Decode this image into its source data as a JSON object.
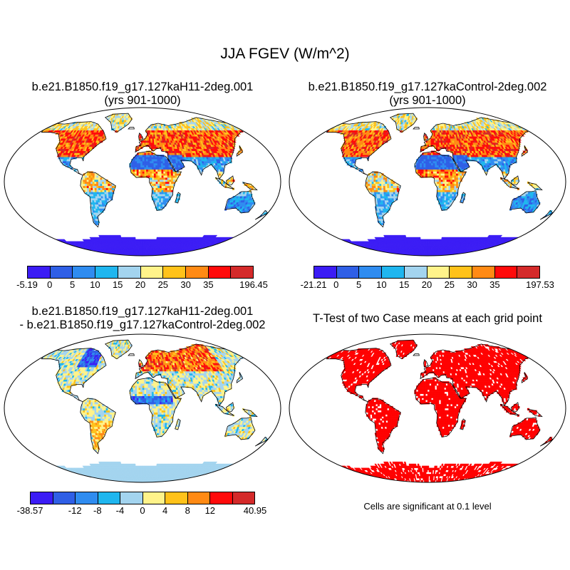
{
  "figure": {
    "title": "JJA FGEV (W/m^2)"
  },
  "panels": [
    {
      "id": "case",
      "title_line1": "b.e21.B1850.f19_g17.127kaH11-2deg.001",
      "title_line2": "(yrs 901-1000)",
      "colorbar_labels": [
        "-5.19",
        "0",
        "5",
        "10",
        "15",
        "20",
        "25",
        "30",
        "35",
        "196.45"
      ]
    },
    {
      "id": "control",
      "title_line1": "b.e21.B1850.f19_g17.127kaControl-2deg.002",
      "title_line2": "(yrs 901-1000)",
      "colorbar_labels": [
        "-21.21",
        "0",
        "5",
        "10",
        "15",
        "20",
        "25",
        "30",
        "35",
        "197.53"
      ]
    },
    {
      "id": "difference",
      "title_line1": "b.e21.B1850.f19_g17.127kaH11-2deg.001",
      "title_line2": "- b.e21.B1850.f19_g17.127kaControl-2deg.002",
      "colorbar_labels": [
        "-38.57",
        "-12",
        "-8",
        "-4",
        "0",
        "4",
        "8",
        "12",
        "40.95"
      ]
    },
    {
      "id": "ttest",
      "title_line1": "T-Test of two Case means at each grid point",
      "note": "Cells are significant at 0.1 level"
    }
  ],
  "colors": {
    "mean_palette": [
      "#3b1cf5",
      "#2f5fe6",
      "#2f8cf0",
      "#1fb6ef",
      "#a3d4ef",
      "#fff38a",
      "#ffc21a",
      "#ff8a14",
      "#ff0a0a",
      "#d42a2a"
    ],
    "diff_palette": [
      "#3b1cf5",
      "#2f5fe6",
      "#2f8cf0",
      "#1fb6ef",
      "#a3d4ef",
      "#fff38a",
      "#ffc21a",
      "#ff8a14",
      "#ff0a0a",
      "#d42a2a"
    ],
    "significance": "#ff0000",
    "antarctica_mean": "#3b1cf5",
    "antarctica_diff": "#a3d4ef"
  }
}
